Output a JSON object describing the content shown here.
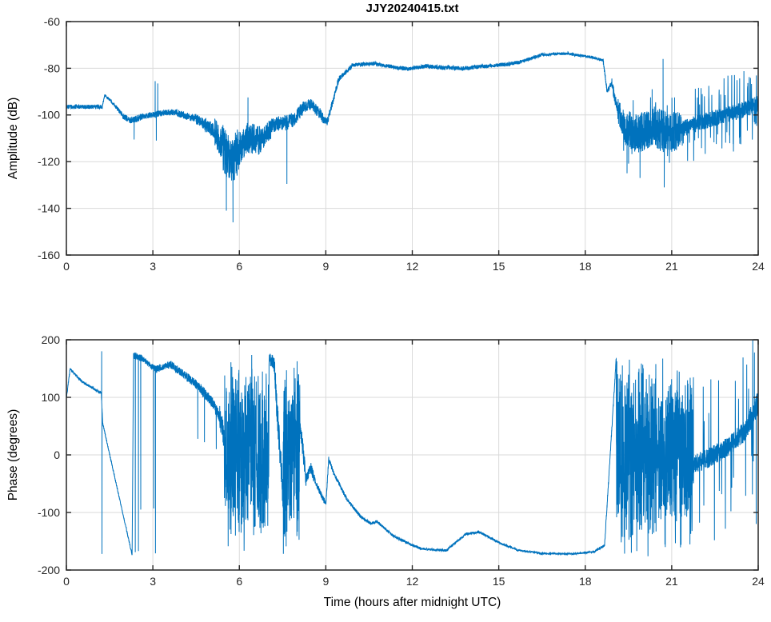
{
  "figure": {
    "background": "#ffffff",
    "line_color": "#0072bd",
    "grid_color": "#dadada",
    "axis_color": "#262626",
    "tick_label_color": "#262626",
    "label_color": "#000000"
  },
  "chart_data": [
    {
      "type": "line",
      "title": "JJY20240415.txt",
      "xlabel": "",
      "ylabel": "Amplitude (dB)",
      "xlim": [
        0,
        24
      ],
      "ylim": [
        -160,
        -60
      ],
      "xticks": [
        0,
        3,
        6,
        9,
        12,
        15,
        18,
        21,
        24
      ],
      "yticks": [
        -160,
        -140,
        -120,
        -100,
        -80,
        -60
      ],
      "grid": true,
      "legend": null,
      "series_name": "amplitude",
      "encoding": {
        "segments": "[t_start_h, t_end_h, value_start, value_end, noise_amp, mode(0=line+noise, 1=uniform_band_min_max, 2=line+noise+random_spikes), spike_amp, spike_prob]",
        "spikes": "[t_h, value] single-sample excursions"
      },
      "segments": [
        [
          0.0,
          1.25,
          -96.5,
          -96.5,
          0.9,
          0
        ],
        [
          1.25,
          1.33,
          -96.0,
          -91.5,
          0.6,
          0
        ],
        [
          1.33,
          1.55,
          -91.5,
          -94.0,
          0.6,
          0
        ],
        [
          1.55,
          1.95,
          -94.0,
          -100.0,
          0.9,
          0
        ],
        [
          1.95,
          2.25,
          -100.5,
          -102.5,
          1.3,
          0
        ],
        [
          2.25,
          2.6,
          -102.5,
          -100.8,
          1.5,
          0
        ],
        [
          2.6,
          3.05,
          -100.8,
          -99.8,
          1.2,
          0
        ],
        [
          3.05,
          3.3,
          -99.8,
          -99.5,
          1.5,
          0
        ],
        [
          3.3,
          3.85,
          -99.0,
          -98.8,
          1.3,
          0
        ],
        [
          3.85,
          4.45,
          -99.2,
          -101.5,
          1.6,
          0
        ],
        [
          4.45,
          4.8,
          -101.5,
          -104.0,
          2.2,
          0
        ],
        [
          4.8,
          5.15,
          -104.0,
          -107.0,
          3.0,
          0
        ],
        [
          5.15,
          5.4,
          -107.0,
          -113.0,
          6.0,
          0
        ],
        [
          5.4,
          5.7,
          -113.0,
          -120.0,
          10.0,
          0
        ],
        [
          5.7,
          6.0,
          -120.0,
          -115.0,
          10.0,
          0
        ],
        [
          6.0,
          6.3,
          -115.0,
          -110.0,
          7.0,
          0
        ],
        [
          6.3,
          6.75,
          -110.0,
          -111.0,
          6.5,
          0
        ],
        [
          6.75,
          7.15,
          -111.0,
          -105.0,
          4.5,
          0
        ],
        [
          7.15,
          7.6,
          -104.5,
          -103.0,
          3.2,
          0
        ],
        [
          7.6,
          7.95,
          -103.5,
          -101.5,
          3.2,
          0
        ],
        [
          7.95,
          8.2,
          -101.0,
          -97.0,
          3.0,
          0
        ],
        [
          8.2,
          8.5,
          -96.5,
          -95.5,
          2.6,
          0
        ],
        [
          8.5,
          8.9,
          -95.5,
          -101.0,
          2.4,
          0
        ],
        [
          8.9,
          9.05,
          -102.0,
          -103.0,
          1.6,
          0
        ],
        [
          9.05,
          9.45,
          -103.0,
          -84.5,
          1.6,
          0
        ],
        [
          9.45,
          9.9,
          -84.5,
          -79.2,
          1.1,
          0
        ],
        [
          9.9,
          10.75,
          -78.6,
          -77.9,
          0.8,
          0
        ],
        [
          10.75,
          11.35,
          -78.2,
          -79.4,
          0.8,
          0
        ],
        [
          11.35,
          11.95,
          -79.6,
          -80.3,
          0.9,
          0
        ],
        [
          11.95,
          12.55,
          -80.0,
          -78.9,
          0.9,
          0
        ],
        [
          12.55,
          13.15,
          -79.1,
          -79.9,
          0.9,
          0
        ],
        [
          13.15,
          13.75,
          -79.6,
          -80.1,
          0.9,
          0
        ],
        [
          13.75,
          14.45,
          -80.1,
          -79.1,
          0.9,
          0
        ],
        [
          14.45,
          15.15,
          -79.3,
          -78.4,
          0.8,
          0
        ],
        [
          15.15,
          15.75,
          -78.5,
          -77.4,
          0.8,
          0
        ],
        [
          15.75,
          16.45,
          -77.2,
          -74.4,
          0.7,
          0
        ],
        [
          16.45,
          17.45,
          -74.2,
          -73.6,
          0.6,
          0
        ],
        [
          17.45,
          18.25,
          -73.9,
          -75.3,
          0.6,
          0
        ],
        [
          18.25,
          18.62,
          -75.3,
          -76.6,
          0.6,
          0
        ],
        [
          18.62,
          18.76,
          -76.6,
          -90.0,
          1.2,
          0
        ],
        [
          18.76,
          18.92,
          -90.0,
          -86.5,
          1.2,
          0
        ],
        [
          18.92,
          19.12,
          -86.5,
          -98.0,
          2.5,
          0
        ],
        [
          19.12,
          19.4,
          -98.0,
          -106.0,
          6.0,
          2,
          14,
          0.02
        ],
        [
          19.4,
          19.85,
          -106.0,
          -108.0,
          8.5,
          2,
          15,
          0.02
        ],
        [
          19.85,
          20.35,
          -108.0,
          -104.5,
          8.5,
          2,
          15,
          0.02
        ],
        [
          20.35,
          20.8,
          -105.0,
          -107.5,
          9.0,
          2,
          16,
          0.02
        ],
        [
          20.8,
          21.35,
          -108.0,
          -106.0,
          8.5,
          2,
          15,
          0.02
        ],
        [
          21.35,
          22.05,
          -106.0,
          -103.0,
          3.5,
          2,
          16,
          0.09
        ],
        [
          22.05,
          22.85,
          -103.0,
          -100.0,
          3.5,
          2,
          17,
          0.1
        ],
        [
          22.85,
          23.6,
          -100.0,
          -97.5,
          3.5,
          2,
          17,
          0.1
        ],
        [
          23.6,
          24.0,
          -97.5,
          -95.0,
          3.5,
          2,
          16,
          0.1
        ]
      ],
      "spikes": [
        [
          2.35,
          -110.5
        ],
        [
          3.08,
          -85.5
        ],
        [
          3.12,
          -111.0
        ],
        [
          3.17,
          -86.5
        ],
        [
          5.55,
          -141.0
        ],
        [
          5.78,
          -146.0
        ],
        [
          6.3,
          -92.5
        ],
        [
          7.65,
          -129.5
        ],
        [
          19.45,
          -125.0
        ],
        [
          19.9,
          -127.0
        ],
        [
          20.32,
          -89.0
        ],
        [
          20.7,
          -76.0
        ],
        [
          20.74,
          -131.0
        ],
        [
          21.1,
          -92.5
        ]
      ]
    },
    {
      "type": "line",
      "title": "",
      "xlabel": "Time (hours after midnight UTC)",
      "ylabel": "Phase (degrees)",
      "xlim": [
        0,
        24
      ],
      "ylim": [
        -200,
        200
      ],
      "xticks": [
        0,
        3,
        6,
        9,
        12,
        15,
        18,
        21,
        24
      ],
      "yticks": [
        -200,
        -100,
        0,
        100,
        200
      ],
      "grid": true,
      "legend": null,
      "series_name": "phase",
      "encoding": {
        "segments": "[t_start_h, t_end_h, value_start, value_end, noise_amp, mode(0=line+noise, 1=uniform_band_min_max, 2=line+noise+random_spikes), spike_amp, spike_prob]",
        "spikes": "[t_h, value] single-sample excursions"
      },
      "segments": [
        [
          0.0,
          0.13,
          98,
          149,
          2.5,
          0
        ],
        [
          0.13,
          0.55,
          149,
          127,
          2.5,
          0
        ],
        [
          0.55,
          1.21,
          127,
          107,
          2.2,
          0
        ],
        [
          1.21,
          1.26,
          107,
          55,
          2.0,
          0
        ],
        [
          1.26,
          2.28,
          55,
          -174,
          2.0,
          0
        ],
        [
          2.28,
          2.33,
          -174,
          177,
          2.0,
          0
        ],
        [
          2.33,
          2.62,
          173,
          168,
          6.0,
          0
        ],
        [
          2.62,
          3.0,
          168,
          152,
          5.0,
          0
        ],
        [
          3.0,
          3.12,
          152,
          149,
          6.0,
          0
        ],
        [
          3.12,
          3.62,
          149,
          157,
          6.0,
          0
        ],
        [
          3.62,
          4.12,
          157,
          138,
          7.0,
          0
        ],
        [
          4.12,
          4.62,
          138,
          117,
          8.0,
          0
        ],
        [
          4.62,
          5.02,
          117,
          94,
          9.0,
          0
        ],
        [
          5.02,
          5.32,
          94,
          66,
          10.0,
          0
        ],
        [
          5.32,
          5.48,
          66,
          30,
          22.0,
          0
        ],
        [
          5.48,
          7.03,
          -178,
          178,
          0,
          1
        ],
        [
          7.03,
          7.2,
          168,
          160,
          12.0,
          0
        ],
        [
          7.2,
          7.52,
          160,
          -75,
          26.0,
          0
        ],
        [
          7.52,
          8.1,
          -180,
          180,
          0,
          1
        ],
        [
          8.1,
          8.32,
          55,
          -42,
          17.0,
          0
        ],
        [
          8.32,
          8.48,
          -42,
          -22,
          9.0,
          0
        ],
        [
          8.48,
          8.64,
          -22,
          -48,
          9.0,
          0
        ],
        [
          8.64,
          9.0,
          -48,
          -86,
          5.0,
          0
        ],
        [
          9.0,
          9.1,
          -86,
          -8,
          5.0,
          0
        ],
        [
          9.1,
          9.28,
          -8,
          -32,
          5.0,
          0
        ],
        [
          9.28,
          9.72,
          -32,
          -76,
          3.5,
          0
        ],
        [
          9.72,
          10.22,
          -76,
          -108,
          3.0,
          0
        ],
        [
          10.22,
          10.56,
          -108,
          -119,
          2.6,
          0
        ],
        [
          10.56,
          10.78,
          -119,
          -116,
          2.6,
          0
        ],
        [
          10.78,
          11.32,
          -116,
          -140,
          2.6,
          0
        ],
        [
          11.32,
          11.92,
          -140,
          -155,
          2.2,
          0
        ],
        [
          11.92,
          12.32,
          -155,
          -163,
          2.2,
          0
        ],
        [
          12.32,
          13.17,
          -163,
          -166,
          2.0,
          0
        ],
        [
          13.17,
          13.87,
          -166,
          -137,
          2.2,
          0
        ],
        [
          13.87,
          14.32,
          -137,
          -134,
          2.2,
          0
        ],
        [
          14.32,
          15.12,
          -134,
          -155,
          2.0,
          0
        ],
        [
          15.12,
          15.62,
          -155,
          -164,
          1.8,
          0
        ],
        [
          15.62,
          16.42,
          -165.5,
          -170,
          1.6,
          0
        ],
        [
          16.42,
          17.62,
          -171,
          -172,
          1.5,
          0
        ],
        [
          17.62,
          18.32,
          -172,
          -168,
          1.5,
          0
        ],
        [
          18.32,
          18.67,
          -168,
          -157,
          2.0,
          0
        ],
        [
          18.67,
          19.08,
          -157,
          172,
          4.0,
          0
        ],
        [
          19.08,
          21.76,
          -178,
          178,
          0,
          1
        ],
        [
          21.76,
          22.25,
          -16,
          -6,
          17.0,
          2,
          150,
          0.05
        ],
        [
          22.25,
          22.95,
          -6,
          14,
          17.0,
          2,
          150,
          0.05
        ],
        [
          22.95,
          23.55,
          14,
          42,
          18.0,
          2,
          150,
          0.05
        ],
        [
          23.55,
          24.0,
          42,
          92,
          20.0,
          2,
          150,
          0.06
        ]
      ],
      "spikes": [
        [
          1.225,
          180
        ],
        [
          1.235,
          -172
        ],
        [
          2.39,
          -169
        ],
        [
          2.5,
          -167
        ],
        [
          2.58,
          -95
        ],
        [
          3.03,
          -93
        ],
        [
          3.09,
          -171
        ],
        [
          4.56,
          28
        ],
        [
          4.79,
          22
        ],
        [
          5.2,
          10
        ],
        [
          23.87,
          178
        ],
        [
          23.93,
          -120
        ]
      ]
    }
  ]
}
